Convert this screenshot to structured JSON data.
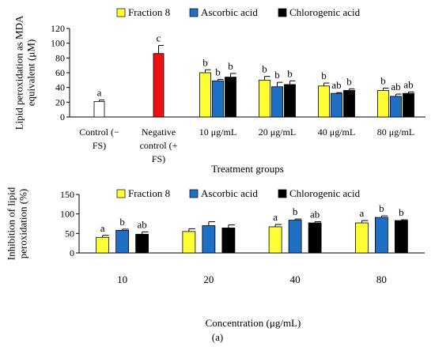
{
  "chart_data": [
    {
      "type": "bar",
      "ylabel": "Lipid peroxidation as MDA equivalent (μM)",
      "ylabel_lines": [
        "Lipid peroxidation as MDA",
        "equivalent (μM)"
      ],
      "xlabel": "Treatment groups",
      "ylim": [
        0,
        120
      ],
      "yticks": [
        0,
        20,
        40,
        60,
        80,
        100,
        120
      ],
      "legend": [
        "Fraction 8",
        "Ascorbic acid",
        "Chlorogenic acid"
      ],
      "legend_position": "top",
      "colors": {
        "fraction": "#ffff33",
        "ascorbic": "#1f6fc5",
        "chlorogenic": "#000000",
        "control": "#ffffff",
        "negative": "#ee1111"
      },
      "controls": [
        {
          "category_lines": [
            "Control (−",
            "FS)"
          ],
          "value": 21,
          "error": 2,
          "color": "#ffffff",
          "letter": "a"
        },
        {
          "category_lines": [
            "Negative",
            "control (+",
            "FS)"
          ],
          "value": 86,
          "error": 11,
          "color": "#ee1111",
          "letter": "c"
        }
      ],
      "categories": [
        "10 μg/mL",
        "20 μg/mL",
        "40 μg/mL",
        "80 μg/mL"
      ],
      "series": [
        {
          "name": "Fraction 8",
          "values": [
            60,
            50,
            42,
            36
          ],
          "errors": [
            4,
            5,
            4,
            3
          ],
          "letters": [
            "b",
            "b",
            "b",
            "b"
          ]
        },
        {
          "name": "Ascorbic acid",
          "values": [
            49,
            41,
            32,
            28
          ],
          "errors": [
            2,
            6,
            1,
            3
          ],
          "letters": [
            "b",
            "b",
            "ab",
            "ab"
          ]
        },
        {
          "name": "Chlorogenic acid",
          "values": [
            54,
            44,
            36,
            32
          ],
          "errors": [
            5,
            5,
            2,
            2
          ],
          "letters": [
            "b",
            "b",
            "b",
            "ab"
          ]
        }
      ]
    },
    {
      "type": "bar",
      "ylabel": "Inhibition of lipid peroxidation (%)",
      "ylabel_lines": [
        "Inhibition of lipid",
        "peroxidation (%)"
      ],
      "xlabel": "Concentration (μg/mL)",
      "ylim": [
        0,
        150
      ],
      "yticks": [
        0,
        50,
        100,
        150
      ],
      "legend": [
        "Fraction 8",
        "Ascorbic acid",
        "Chlorogenic acid"
      ],
      "legend_position": "top",
      "categories": [
        "10",
        "20",
        "40",
        "80"
      ],
      "series": [
        {
          "name": "Fraction 8",
          "values": [
            40,
            55,
            67,
            77
          ],
          "errors": [
            5,
            7,
            6,
            6
          ],
          "letters": [
            "a",
            "",
            "a",
            "a"
          ]
        },
        {
          "name": "Ascorbic acid",
          "values": [
            58,
            70,
            84,
            91
          ],
          "errors": [
            3,
            10,
            3,
            4
          ],
          "letters": [
            "b",
            "",
            "b",
            "b"
          ]
        },
        {
          "name": "Chlorogenic acid",
          "values": [
            48,
            64,
            77,
            83
          ],
          "errors": [
            6,
            8,
            3,
            2
          ],
          "letters": [
            "ab",
            "",
            "ab",
            "b"
          ]
        }
      ]
    }
  ],
  "caption": "(a)"
}
